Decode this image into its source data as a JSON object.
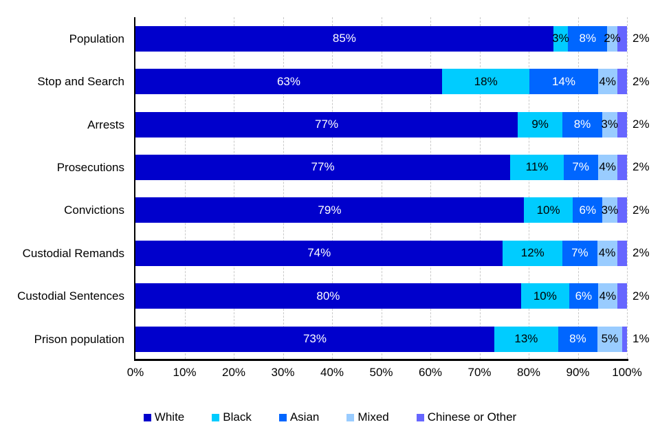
{
  "chart_data": {
    "type": "bar",
    "orientation": "horizontal",
    "stacked": true,
    "title": "",
    "categories": [
      "Population",
      "Stop and Search",
      "Arrests",
      "Prosecutions",
      "Convictions",
      "Custodial Remands",
      "Custodial Sentences",
      "Prison population"
    ],
    "series": [
      {
        "name": "White",
        "color": "#0000CC",
        "label_color": "#FFFFFF",
        "label_outside": false,
        "values": [
          85,
          63,
          77,
          77,
          79,
          74,
          80,
          73
        ]
      },
      {
        "name": "Black",
        "color": "#00CCFF",
        "label_color": "#000000",
        "label_outside": false,
        "values": [
          3,
          18,
          9,
          11,
          10,
          12,
          10,
          13
        ]
      },
      {
        "name": "Asian",
        "color": "#0066FF",
        "label_color": "#FFFFFF",
        "label_outside": false,
        "values": [
          8,
          14,
          8,
          7,
          6,
          7,
          6,
          8
        ]
      },
      {
        "name": "Mixed",
        "color": "#99CCFF",
        "label_color": "#000000",
        "label_outside": false,
        "values": [
          2,
          4,
          3,
          4,
          3,
          4,
          4,
          5
        ]
      },
      {
        "name": "Chinese or Other",
        "color": "#6666FF",
        "label_color": "#000000",
        "label_outside": true,
        "values": [
          2,
          2,
          2,
          2,
          2,
          2,
          2,
          1
        ]
      }
    ],
    "value_suffix": "%",
    "x_ticks": [
      "0%",
      "10%",
      "20%",
      "30%",
      "40%",
      "50%",
      "60%",
      "70%",
      "80%",
      "90%",
      "100%"
    ],
    "xlim": [
      0,
      100
    ],
    "grid": "vertical-dashed",
    "gridline_color": "#C9C9C9",
    "axis_color": "#000000",
    "legend_position": "bottom"
  }
}
